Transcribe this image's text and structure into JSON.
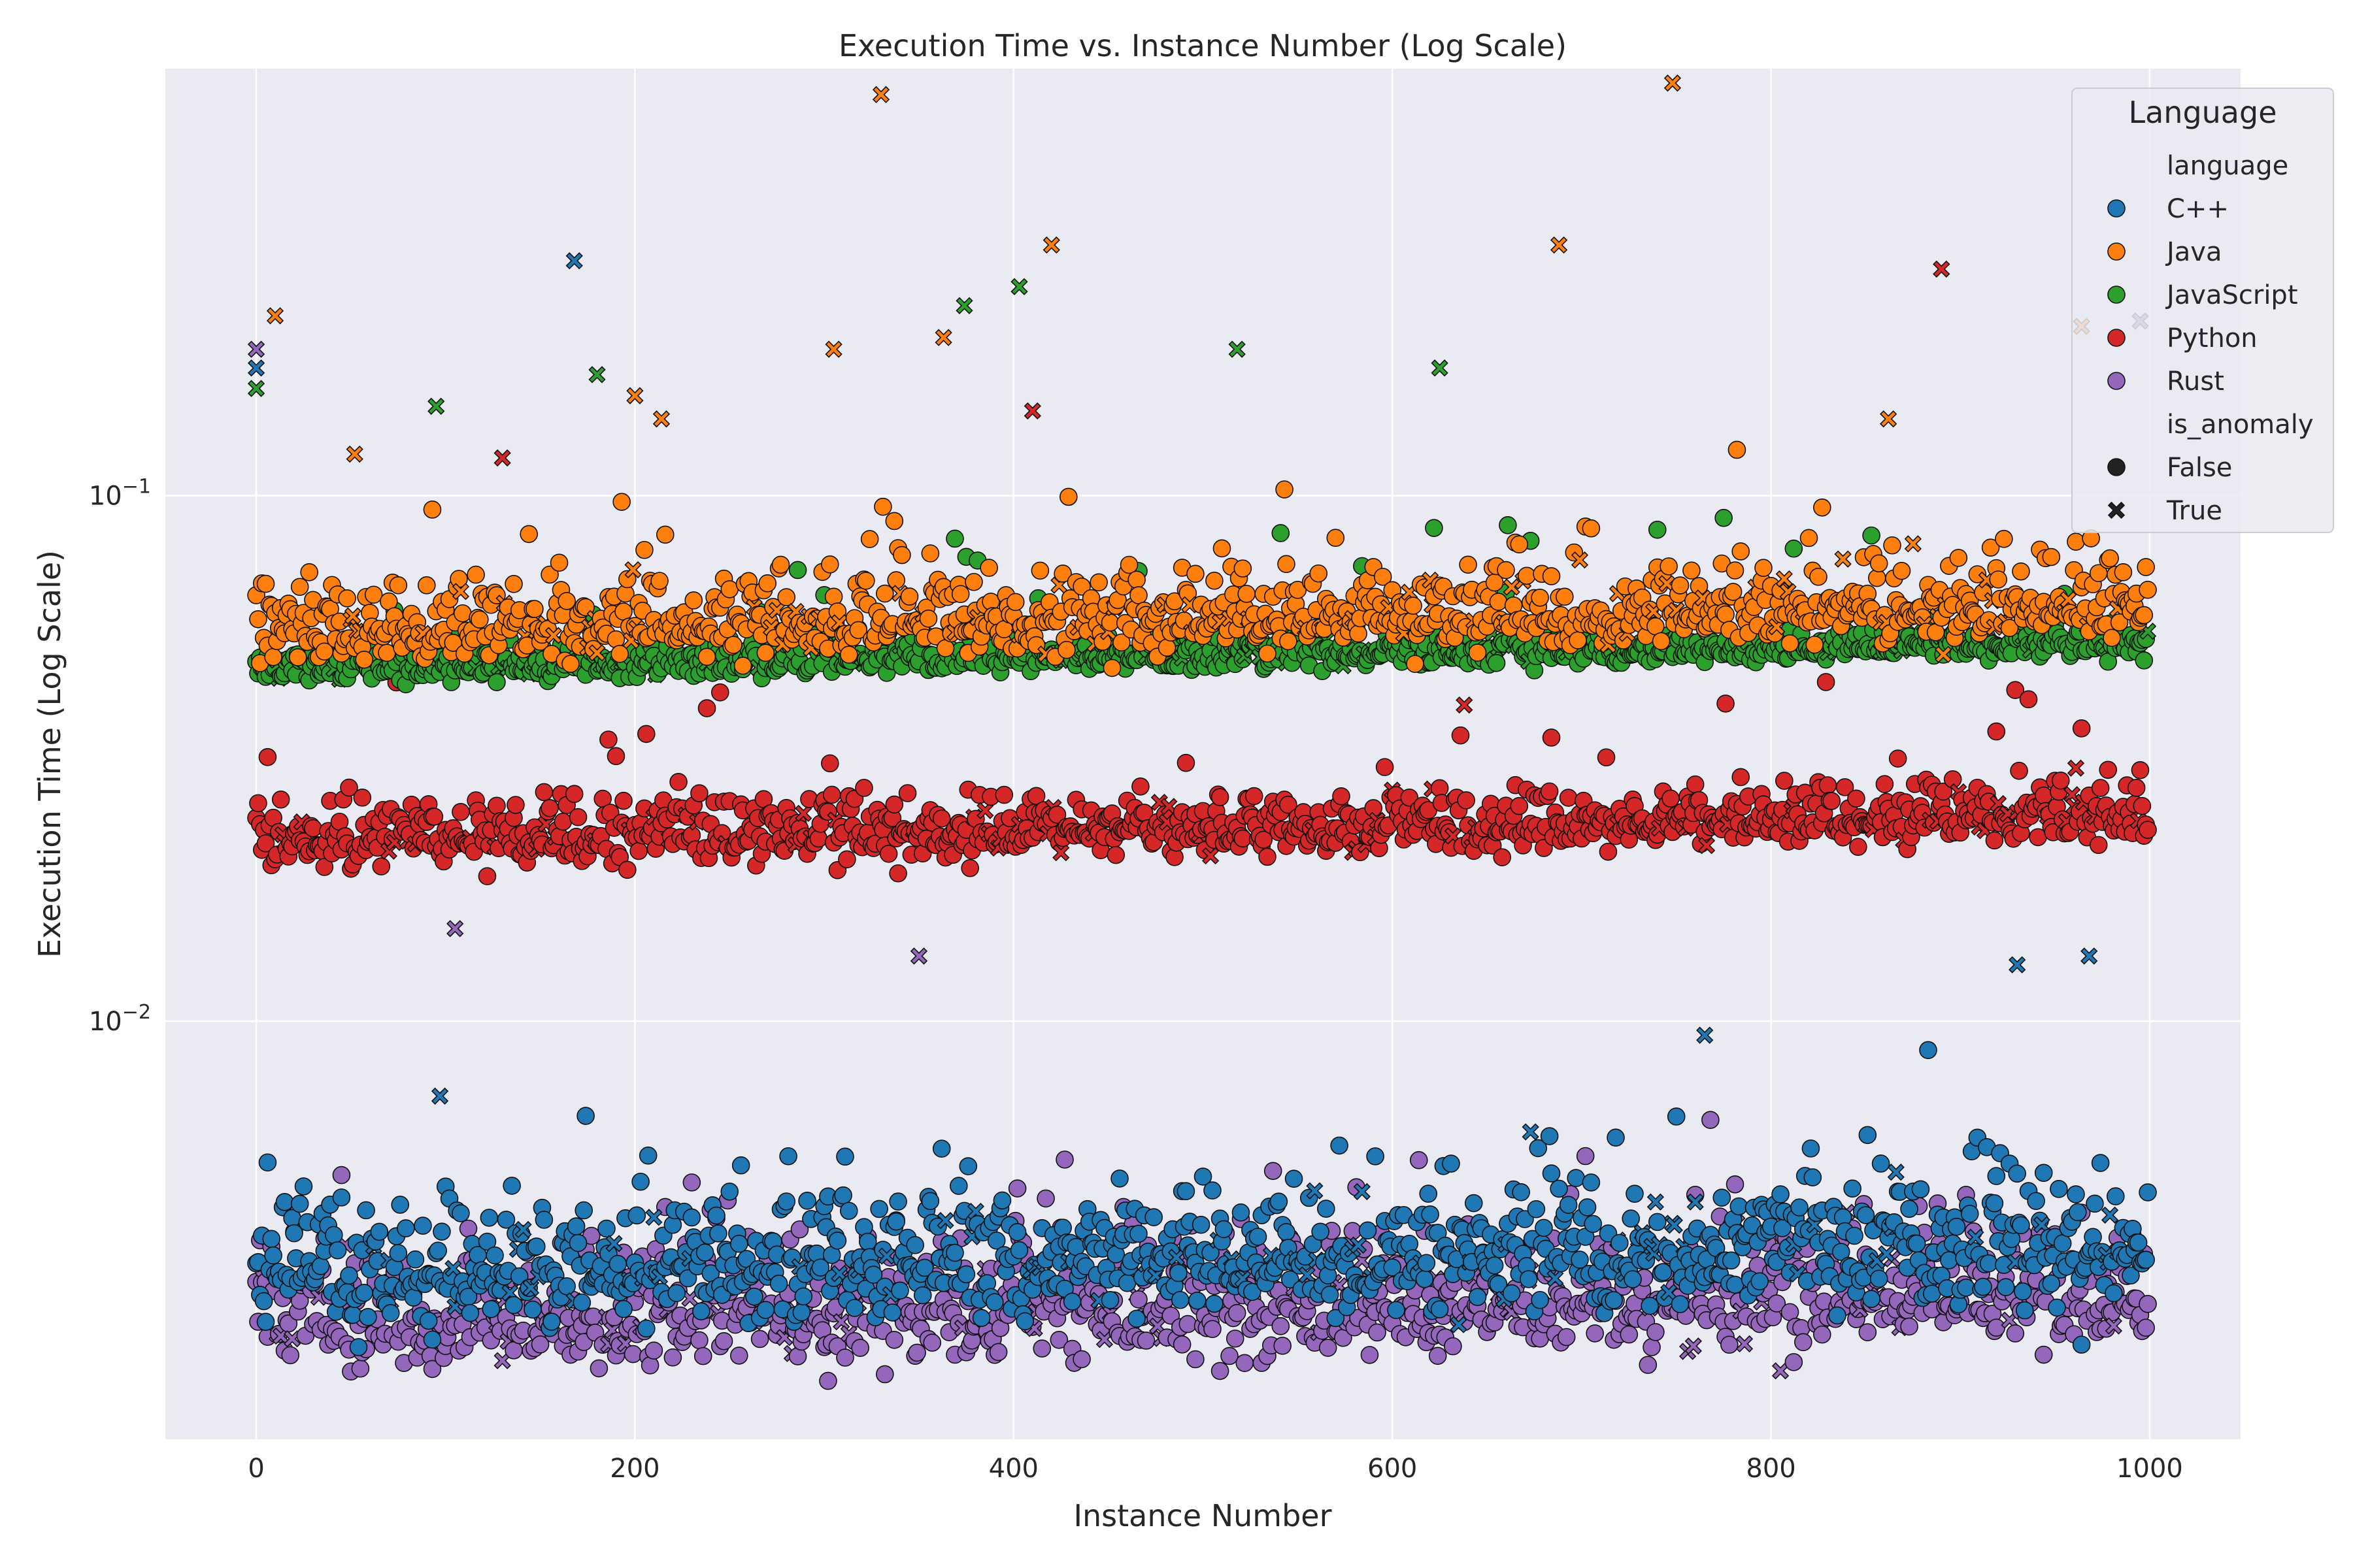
{
  "chart_data": {
    "type": "scatter",
    "title": "Execution Time vs. Instance Number (Log Scale)",
    "xlabel": "Instance Number",
    "ylabel": "Execution Time (Log Scale)",
    "xlim": [
      -48,
      1048
    ],
    "ylim": [
      0.0016,
      0.65
    ],
    "yscale": "log",
    "grid": true,
    "x_ticks": [
      {
        "value": 0,
        "label": "0"
      },
      {
        "value": 200,
        "label": "200"
      },
      {
        "value": 400,
        "label": "400"
      },
      {
        "value": 600,
        "label": "600"
      },
      {
        "value": 800,
        "label": "800"
      },
      {
        "value": 1000,
        "label": "1000"
      }
    ],
    "y_ticks": [
      {
        "value": 0.01,
        "base": "10",
        "exponent": "−2"
      },
      {
        "value": 0.1,
        "base": "10",
        "exponent": "−1"
      }
    ],
    "legend": {
      "title": "Language",
      "placement": "top-right",
      "hue_title": "language",
      "style_title": "is_anomaly",
      "hue_entries": [
        {
          "label": "C++",
          "color": "#1f77b4"
        },
        {
          "label": "Java",
          "color": "#ff7f0e"
        },
        {
          "label": "JavaScript",
          "color": "#2ca02c"
        },
        {
          "label": "Python",
          "color": "#d62728"
        },
        {
          "label": "Rust",
          "color": "#9467bd"
        }
      ],
      "style_entries": [
        {
          "label": "False",
          "marker": "circle"
        },
        {
          "label": "True",
          "marker": "x"
        }
      ]
    },
    "n_instances": 1000,
    "series": [
      {
        "name": "C++",
        "color": "#1f77b4",
        "typical_value": 0.0033,
        "spread": 0.18
      },
      {
        "name": "Java",
        "color": "#ff7f0e",
        "typical_value": 0.055,
        "spread": 0.12
      },
      {
        "name": "JavaScript",
        "color": "#2ca02c",
        "typical_value": 0.047,
        "spread": 0.05
      },
      {
        "name": "Python",
        "color": "#d62728",
        "typical_value": 0.022,
        "spread": 0.09
      },
      {
        "name": "Rust",
        "color": "#9467bd",
        "typical_value": 0.0027,
        "spread": 0.18
      }
    ],
    "labeled_anomalies": [
      {
        "series": "Java",
        "x": 330,
        "y": 0.58
      },
      {
        "series": "Java",
        "x": 748,
        "y": 0.61
      },
      {
        "series": "Java",
        "x": 10,
        "y": 0.22
      },
      {
        "series": "Java",
        "x": 420,
        "y": 0.3
      },
      {
        "series": "Java",
        "x": 688,
        "y": 0.3
      },
      {
        "series": "Java",
        "x": 363,
        "y": 0.2
      },
      {
        "series": "Java",
        "x": 305,
        "y": 0.19
      },
      {
        "series": "Java",
        "x": 52,
        "y": 0.12
      },
      {
        "series": "Java",
        "x": 200,
        "y": 0.155
      },
      {
        "series": "Java",
        "x": 214,
        "y": 0.14
      },
      {
        "series": "Java",
        "x": 964,
        "y": 0.21
      },
      {
        "series": "Java",
        "x": 862,
        "y": 0.14
      },
      {
        "series": "C++",
        "x": 168,
        "y": 0.28
      },
      {
        "series": "C++",
        "x": 0,
        "y": 0.175
      },
      {
        "series": "C++",
        "x": 97,
        "y": 0.0072
      },
      {
        "series": "C++",
        "x": 930,
        "y": 0.0128
      },
      {
        "series": "C++",
        "x": 968,
        "y": 0.0133
      },
      {
        "series": "C++",
        "x": 765,
        "y": 0.0094
      },
      {
        "series": "JavaScript",
        "x": 403,
        "y": 0.25
      },
      {
        "series": "JavaScript",
        "x": 374,
        "y": 0.23
      },
      {
        "series": "JavaScript",
        "x": 0,
        "y": 0.16
      },
      {
        "series": "JavaScript",
        "x": 180,
        "y": 0.17
      },
      {
        "series": "JavaScript",
        "x": 518,
        "y": 0.19
      },
      {
        "series": "JavaScript",
        "x": 625,
        "y": 0.175
      },
      {
        "series": "JavaScript",
        "x": 95,
        "y": 0.148
      },
      {
        "series": "Python",
        "x": 890,
        "y": 0.27
      },
      {
        "series": "Python",
        "x": 130,
        "y": 0.118
      },
      {
        "series": "Python",
        "x": 410,
        "y": 0.145
      },
      {
        "series": "Rust",
        "x": 0,
        "y": 0.19
      },
      {
        "series": "Rust",
        "x": 995,
        "y": 0.215
      },
      {
        "series": "Rust",
        "x": 350,
        "y": 0.0133
      },
      {
        "series": "Rust",
        "x": 105,
        "y": 0.015
      }
    ]
  }
}
